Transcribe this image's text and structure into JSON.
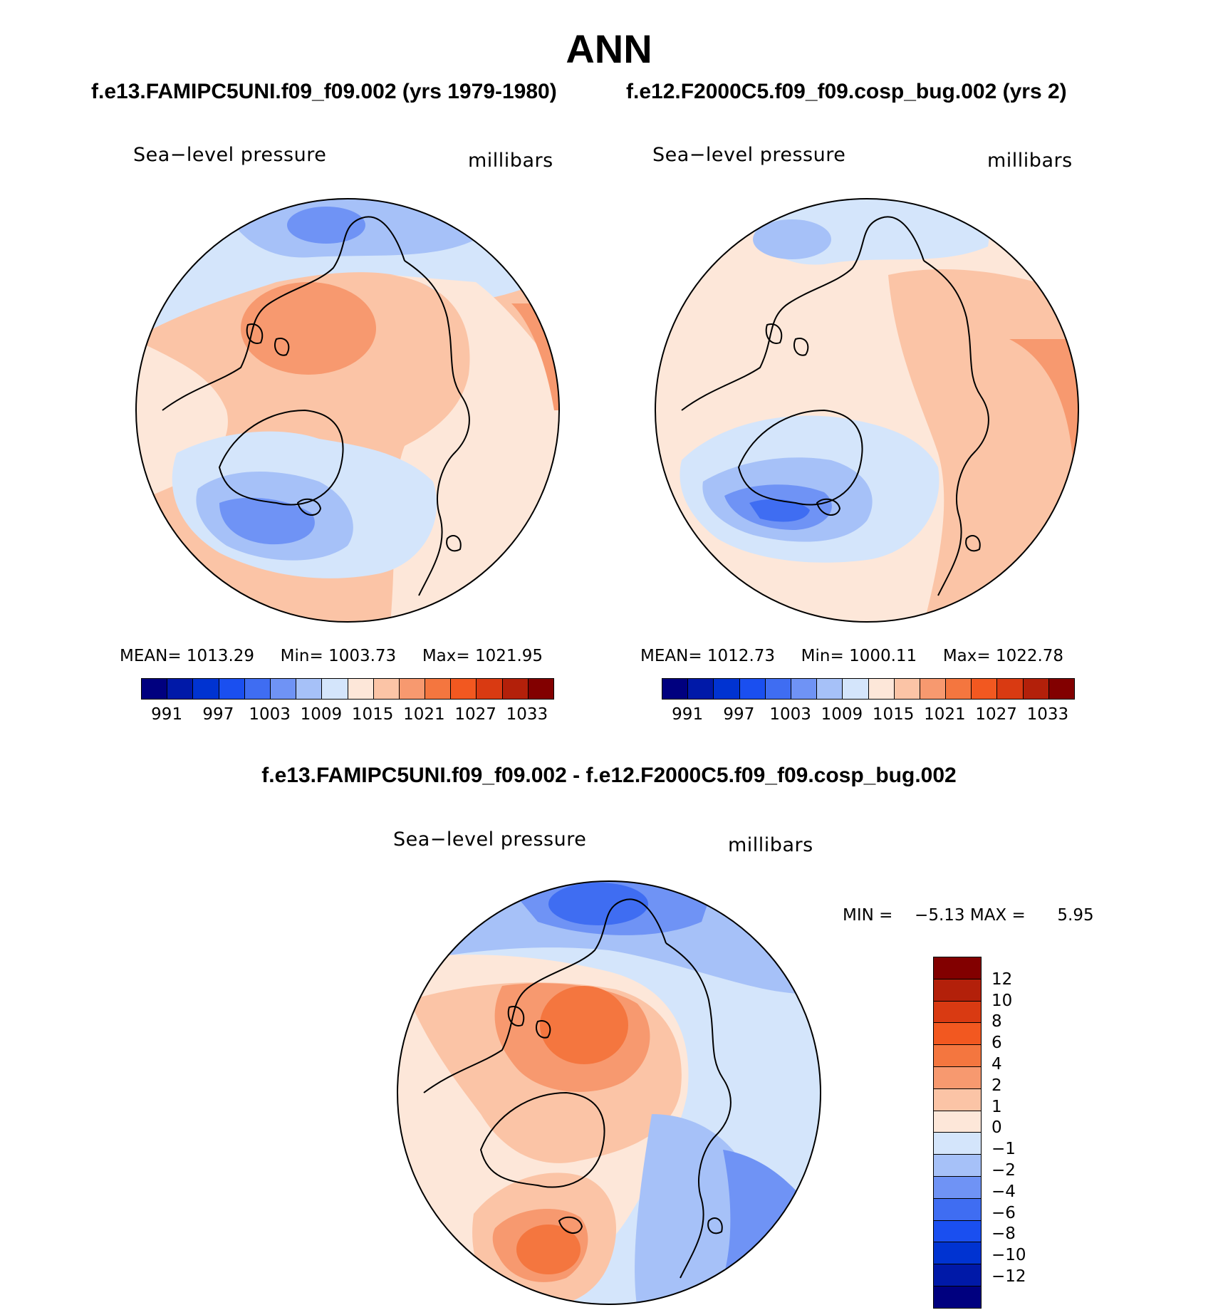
{
  "figure": {
    "title": "ANN",
    "case_titles": [
      "f.e13.FAMIPC5UNI.f09_f09.002 (yrs 1979-1980)",
      "f.e12.F2000C5.f09_f09.cosp_bug.002 (yrs 2)"
    ],
    "diff_title": "f.e13.FAMIPC5UNI.f09_f09.002 - f.e12.F2000C5.f09_f09.cosp_bug.002"
  },
  "panels": [
    {
      "variable": "Sea−level pressure",
      "units": "millibars",
      "stats": {
        "mean_label": "MEAN=",
        "mean": "1013.29",
        "min_label": "Min=",
        "min": "1003.73",
        "max_label": "Max=",
        "max": "1021.95"
      }
    },
    {
      "variable": "Sea−level pressure",
      "units": "millibars",
      "stats": {
        "mean_label": "MEAN=",
        "mean": "1012.73",
        "min_label": "Min=",
        "min": "1000.11",
        "max_label": "Max=",
        "max": "1022.78"
      }
    },
    {
      "variable": "Sea−level pressure",
      "units": "millibars",
      "stats": {
        "min_label": "MIN =",
        "min": "−5.13",
        "max_label": "MAX =",
        "max": "5.95"
      }
    }
  ],
  "colorbar_abs": {
    "colors": [
      "#00007f",
      "#0019a8",
      "#0033d1",
      "#1a4ff0",
      "#3f6df2",
      "#6f93f5",
      "#a6c1f8",
      "#d4e5fb",
      "#fde7d9",
      "#fbc4a6",
      "#f7996f",
      "#f4763f",
      "#f25820",
      "#d93a12",
      "#b3200a",
      "#820000"
    ],
    "labels": [
      "991",
      "997",
      "1003",
      "1009",
      "1015",
      "1021",
      "1027",
      "1033"
    ]
  },
  "colorbar_diff": {
    "colors": [
      "#820000",
      "#b3200a",
      "#d93a12",
      "#f25820",
      "#f4763f",
      "#f7996f",
      "#fbc4a6",
      "#fde7d9",
      "#d4e5fb",
      "#a6c1f8",
      "#6f93f5",
      "#3f6df2",
      "#1a4ff0",
      "#0033d1",
      "#0019a8",
      "#00007f"
    ],
    "labels": [
      "12",
      "10",
      "8",
      "6",
      "4",
      "2",
      "1",
      "0",
      "−1",
      "−2",
      "−4",
      "−6",
      "−8",
      "−10",
      "−12"
    ]
  }
}
